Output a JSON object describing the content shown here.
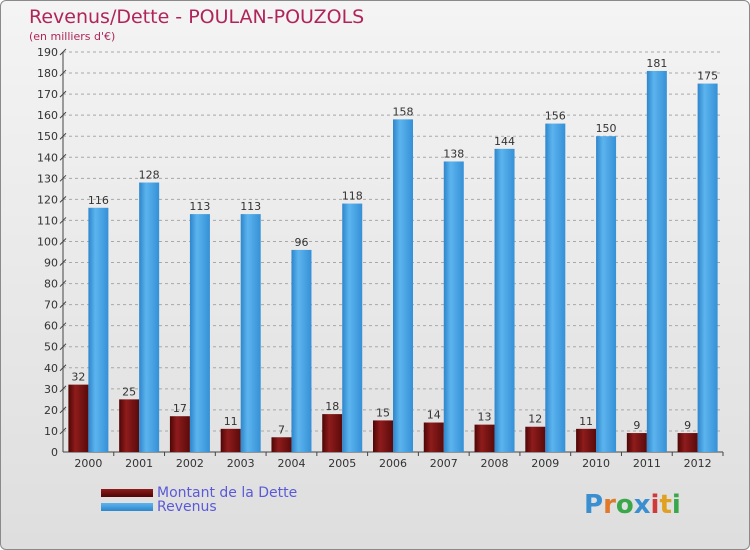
{
  "title": "Revenus/Dette - POULAN-POUZOLS",
  "subtitle": "(en milliers d'€)",
  "logo": {
    "text": "Proxiti",
    "colors": [
      "#3a8fd0",
      "#e07a2a",
      "#3aa84a",
      "#3a8fd0",
      "#d03a3a",
      "#e0a020",
      "#3aa84a"
    ]
  },
  "chart_data": {
    "type": "bar",
    "title": "Revenus/Dette - POULAN-POUZOLS",
    "ylabel": "(en milliers d'€)",
    "xlabel": "",
    "ylim": [
      0,
      190
    ],
    "yticks": [
      0,
      10,
      20,
      30,
      40,
      50,
      60,
      70,
      80,
      90,
      100,
      110,
      120,
      130,
      140,
      150,
      160,
      170,
      180,
      190
    ],
    "grid": true,
    "legend_position": "bottom-left",
    "categories": [
      "2000",
      "2001",
      "2002",
      "2003",
      "2004",
      "2005",
      "2006",
      "2007",
      "2008",
      "2009",
      "2010",
      "2011",
      "2012"
    ],
    "series": [
      {
        "name": "Montant de la Dette",
        "color": "#7a1010",
        "values": [
          32,
          25,
          17,
          11,
          7,
          18,
          15,
          14,
          13,
          12,
          11,
          9,
          9
        ]
      },
      {
        "name": "Revenus",
        "color": "#3f9ce0",
        "values": [
          116,
          128,
          113,
          113,
          96,
          118,
          158,
          138,
          144,
          156,
          150,
          181,
          175
        ]
      }
    ]
  }
}
